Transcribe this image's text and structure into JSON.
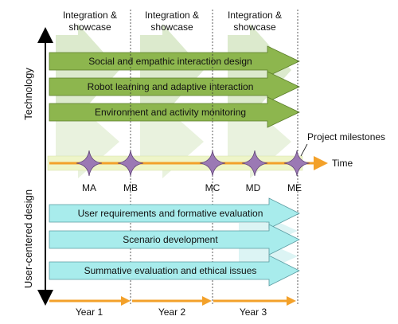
{
  "integration_labels": [
    [
      "Integration &",
      "showcase"
    ],
    [
      "Integration &",
      "showcase"
    ],
    [
      "Integration &",
      "showcase"
    ]
  ],
  "axis_labels": {
    "technology": "Technology",
    "user_centered": "User-centered design",
    "time": "Time",
    "project_milestones": "Project milestones"
  },
  "technology_tracks": [
    "Social and empathic interaction design",
    "Robot learning and adaptive interaction",
    "Environment and activity monitoring"
  ],
  "user_tracks": [
    "User requirements and formative evaluation",
    "Scenario development",
    "Summative evaluation and ethical issues"
  ],
  "milestones": [
    "MA",
    "MB",
    "MC",
    "MD",
    "ME"
  ],
  "years": [
    "Year 1",
    "Year 2",
    "Year 3"
  ],
  "colors": {
    "tech_arrow": "#8db64e",
    "tech_arrow_stroke": "#5b7d2a",
    "user_arrow": "#a8ecec",
    "user_arrow_stroke": "#5a9aa0",
    "timeline": "#f3a12a",
    "milestone": "#9b79b4",
    "showcase_arrow": "#d3e5c0",
    "timeline_band": "#eef5c8"
  }
}
